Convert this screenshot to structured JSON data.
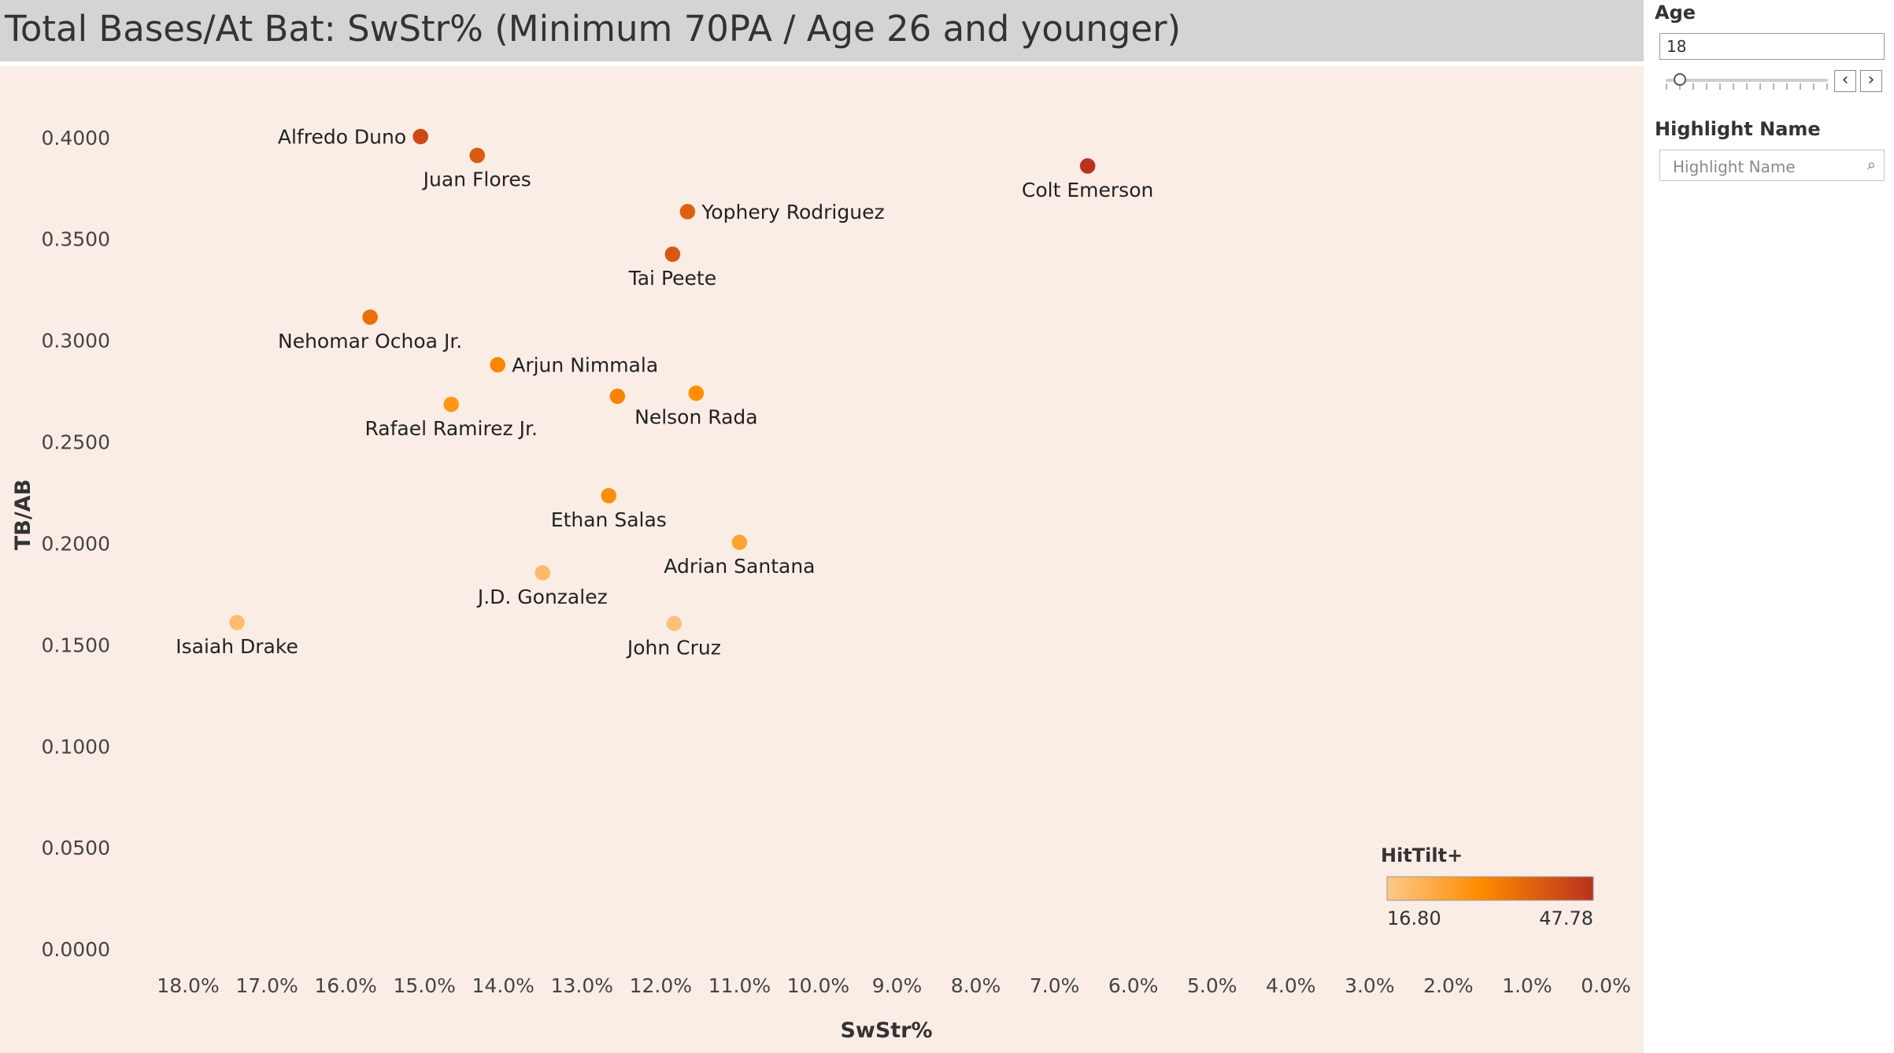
{
  "page": {
    "title": "Total Bases/At Bat: SwStr% (Minimum 70PA / Age 26 and younger)"
  },
  "filters": {
    "age_label": "Age",
    "age_value": "18",
    "prev_glyph": "‹",
    "next_glyph": "›",
    "highlight_label": "Highlight Name",
    "highlight_placeholder": "Highlight Name",
    "search_icon": "search-icon"
  },
  "chart_data": {
    "type": "scatter",
    "title": "",
    "xlabel": "SwStr%",
    "ylabel": "TB/AB",
    "xlim": [
      18.4,
      0.0
    ],
    "ylim": [
      -0.005,
      0.41
    ],
    "x_reversed": true,
    "x_ticks": [
      "18.0%",
      "17.0%",
      "16.0%",
      "15.0%",
      "14.0%",
      "13.0%",
      "12.0%",
      "11.0%",
      "10.0%",
      "9.0%",
      "8.0%",
      "7.0%",
      "6.0%",
      "5.0%",
      "4.0%",
      "3.0%",
      "2.0%",
      "1.0%",
      "0.0%"
    ],
    "y_ticks": [
      "0.0000",
      "0.0500",
      "0.1000",
      "0.1500",
      "0.2000",
      "0.2500",
      "0.3000",
      "0.3500",
      "0.4000"
    ],
    "grid": false,
    "color_legend": {
      "title": "HitTilt+",
      "min_label": "16.80",
      "max_label": "47.78",
      "min": 16.8,
      "max": 47.78,
      "gradient": [
        "#fcc88a",
        "#ff8c00",
        "#b8321e"
      ],
      "position": "bottom-right"
    },
    "points": [
      {
        "name": "Alfredo Duno",
        "x": 15.05,
        "y": 0.4005,
        "hittilt": 43.5
      },
      {
        "name": "Juan Flores",
        "x": 14.33,
        "y": 0.3912,
        "hittilt": 40.0
      },
      {
        "name": "Colt Emerson",
        "x": 6.58,
        "y": 0.386,
        "hittilt": 47.78
      },
      {
        "name": "Yophery Rodriguez",
        "x": 11.66,
        "y": 0.3635,
        "hittilt": 39.0
      },
      {
        "name": "Tai Peete",
        "x": 11.85,
        "y": 0.3425,
        "hittilt": 40.5
      },
      {
        "name": "Nehomar Ochoa Jr.",
        "x": 15.69,
        "y": 0.3115,
        "hittilt": 36.0
      },
      {
        "name": "Arjun Nimmala",
        "x": 14.07,
        "y": 0.288,
        "hittilt": 32.0
      },
      {
        "name": "Nelson Rada",
        "x": 11.55,
        "y": 0.274,
        "hittilt": 30.5
      },
      {
        "name": "Unlabeled point",
        "x": 12.55,
        "y": 0.2725,
        "hittilt": 32.5
      },
      {
        "name": "Rafael Ramirez Jr.",
        "x": 14.66,
        "y": 0.2685,
        "hittilt": 28.5
      },
      {
        "name": "Ethan Salas",
        "x": 12.66,
        "y": 0.2235,
        "hittilt": 30.0
      },
      {
        "name": "Adrian Santana",
        "x": 11.0,
        "y": 0.2005,
        "hittilt": 25.5
      },
      {
        "name": "J.D. Gonzalez",
        "x": 13.5,
        "y": 0.1855,
        "hittilt": 20.0
      },
      {
        "name": "Isaiah Drake",
        "x": 17.38,
        "y": 0.161,
        "hittilt": 19.5
      },
      {
        "name": "John Cruz",
        "x": 11.83,
        "y": 0.1605,
        "hittilt": 18.5
      }
    ],
    "labels": [
      {
        "name": "Alfredo Duno",
        "text": "Alfredo Duno",
        "anchor": "left"
      },
      {
        "name": "Juan Flores",
        "text": "Juan Flores",
        "anchor": "below"
      },
      {
        "name": "Colt Emerson",
        "text": "Colt Emerson",
        "anchor": "below"
      },
      {
        "name": "Yophery Rodriguez",
        "text": "Yophery Rodriguez",
        "anchor": "right"
      },
      {
        "name": "Tai Peete",
        "text": "Tai Peete",
        "anchor": "below"
      },
      {
        "name": "Nehomar Ochoa Jr.",
        "text": "Nehomar Ochoa Jr.",
        "anchor": "below"
      },
      {
        "name": "Arjun Nimmala",
        "text": "Arjun Nimmala",
        "anchor": "right"
      },
      {
        "name": "Nelson Rada",
        "text": "Nelson Rada",
        "anchor": "below"
      },
      {
        "name": "Rafael Ramirez Jr.",
        "text": "Rafael Ramirez Jr.",
        "anchor": "below"
      },
      {
        "name": "Ethan Salas",
        "text": "Ethan Salas",
        "anchor": "below"
      },
      {
        "name": "Adrian Santana",
        "text": "Adrian Santana",
        "anchor": "below"
      },
      {
        "name": "J.D. Gonzalez",
        "text": "J.D. Gonzalez",
        "anchor": "below"
      },
      {
        "name": "Isaiah Drake",
        "text": "Isaiah Drake",
        "anchor": "below"
      },
      {
        "name": "John Cruz",
        "text": "John Cruz",
        "anchor": "below"
      }
    ]
  }
}
